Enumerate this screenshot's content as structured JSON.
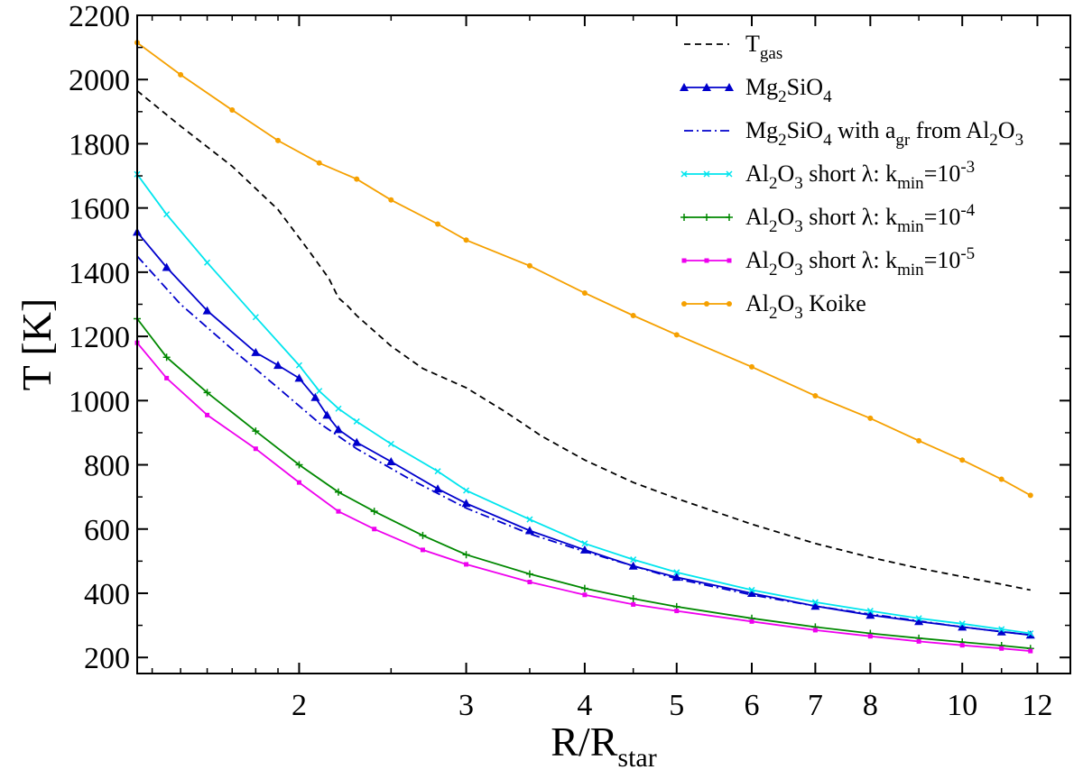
{
  "chart_data": {
    "type": "line",
    "title": "",
    "xlabel": "R/R",
    "xlabel_sub": "star",
    "ylabel": "T [K]",
    "xscale": "log",
    "xlim": [
      1.35,
      13.0
    ],
    "ylim": [
      150,
      2200
    ],
    "x_ticks": [
      2,
      3,
      4,
      5,
      6,
      7,
      8,
      10,
      12
    ],
    "y_ticks": [
      200,
      400,
      600,
      800,
      1000,
      1200,
      1400,
      1600,
      1800,
      2000,
      2200
    ],
    "legend_position": "top-right",
    "series": [
      {
        "id": "tgas",
        "legend": [
          [
            "T",
            ""
          ],
          [
            "gas",
            "sub"
          ]
        ],
        "color": "#000000",
        "dash": "7,5",
        "marker": "none",
        "x": [
          1.35,
          1.5,
          1.7,
          1.9,
          2.05,
          2.15,
          2.2,
          2.25,
          2.3,
          2.5,
          2.7,
          3.0,
          3.3,
          3.6,
          4.0,
          4.5,
          5.0,
          6.0,
          7.0,
          8.0,
          9.0,
          10.0,
          11.0,
          11.8
        ],
        "y": [
          1965,
          1855,
          1730,
          1595,
          1465,
          1380,
          1320,
          1295,
          1265,
          1170,
          1100,
          1040,
          965,
          890,
          815,
          745,
          695,
          615,
          555,
          512,
          478,
          452,
          428,
          410
        ]
      },
      {
        "id": "mg2sio4",
        "legend": [
          [
            "Mg",
            ""
          ],
          [
            "2",
            "sub"
          ],
          [
            "SiO",
            ""
          ],
          [
            "4",
            "sub"
          ]
        ],
        "color": "#0000cc",
        "dash": "",
        "marker": "triangle",
        "x": [
          1.35,
          1.45,
          1.6,
          1.8,
          1.9,
          2.0,
          2.08,
          2.14,
          2.2,
          2.3,
          2.5,
          2.8,
          3.0,
          3.5,
          4.0,
          4.5,
          5.0,
          6.0,
          7.0,
          8.0,
          9.0,
          10.0,
          11.0,
          11.8
        ],
        "y": [
          1525,
          1415,
          1280,
          1150,
          1110,
          1070,
          1010,
          955,
          910,
          870,
          810,
          725,
          680,
          595,
          535,
          485,
          450,
          400,
          360,
          332,
          312,
          295,
          280,
          270
        ]
      },
      {
        "id": "mg2sio4-agr",
        "legend": [
          [
            "Mg",
            ""
          ],
          [
            "2",
            "sub"
          ],
          [
            "SiO",
            ""
          ],
          [
            "4",
            "sub"
          ],
          [
            " with a",
            ""
          ],
          [
            "gr",
            "sub"
          ],
          [
            " from Al",
            ""
          ],
          [
            "2",
            "sub"
          ],
          [
            "O",
            ""
          ],
          [
            "3",
            "sub"
          ]
        ],
        "color": "#0000cc",
        "dash": "10,4,2,4",
        "marker": "none",
        "x": [
          1.35,
          1.5,
          1.7,
          1.9,
          2.1,
          2.3,
          2.6,
          3.0,
          3.5,
          4.0,
          5.0,
          6.0,
          7.0,
          8.0,
          10.0,
          11.8
        ],
        "y": [
          1450,
          1300,
          1160,
          1040,
          930,
          850,
          760,
          665,
          585,
          530,
          445,
          395,
          360,
          335,
          295,
          270
        ]
      },
      {
        "id": "al2o3-kmin-3",
        "legend": [
          [
            "Al",
            ""
          ],
          [
            "2",
            "sub"
          ],
          [
            "O",
            ""
          ],
          [
            "3",
            "sub"
          ],
          [
            " short λ: k",
            ""
          ],
          [
            "min",
            "sub"
          ],
          [
            "=10",
            ""
          ],
          [
            "-3",
            "sup"
          ]
        ],
        "color": "#00e5ee",
        "dash": "",
        "marker": "x",
        "x": [
          1.35,
          1.45,
          1.6,
          1.8,
          2.0,
          2.1,
          2.2,
          2.3,
          2.5,
          2.8,
          3.0,
          3.5,
          4.0,
          4.5,
          5.0,
          6.0,
          7.0,
          8.0,
          9.0,
          10.0,
          11.0,
          11.8
        ],
        "y": [
          1705,
          1580,
          1430,
          1260,
          1110,
          1030,
          975,
          935,
          865,
          780,
          720,
          630,
          555,
          505,
          465,
          410,
          372,
          345,
          322,
          305,
          288,
          275
        ]
      },
      {
        "id": "al2o3-kmin-4",
        "legend": [
          [
            "Al",
            ""
          ],
          [
            "2",
            "sub"
          ],
          [
            "O",
            ""
          ],
          [
            "3",
            "sub"
          ],
          [
            " short λ: k",
            ""
          ],
          [
            "min",
            "sub"
          ],
          [
            "=10",
            ""
          ],
          [
            "-4",
            "sup"
          ]
        ],
        "color": "#008800",
        "dash": "",
        "marker": "plus",
        "x": [
          1.35,
          1.45,
          1.6,
          1.8,
          2.0,
          2.2,
          2.4,
          2.7,
          3.0,
          3.5,
          4.0,
          4.5,
          5.0,
          6.0,
          7.0,
          8.0,
          9.0,
          10.0,
          11.0,
          11.8
        ],
        "y": [
          1255,
          1135,
          1025,
          905,
          800,
          715,
          655,
          580,
          520,
          460,
          415,
          383,
          358,
          322,
          295,
          275,
          260,
          248,
          237,
          228
        ]
      },
      {
        "id": "al2o3-kmin-5",
        "legend": [
          [
            "Al",
            ""
          ],
          [
            "2",
            "sub"
          ],
          [
            "O",
            ""
          ],
          [
            "3",
            "sub"
          ],
          [
            " short λ: k",
            ""
          ],
          [
            "min",
            "sub"
          ],
          [
            "=10",
            ""
          ],
          [
            "-5",
            "sup"
          ]
        ],
        "color": "#ee00ee",
        "dash": "",
        "marker": "square",
        "x": [
          1.35,
          1.45,
          1.6,
          1.8,
          2.0,
          2.2,
          2.4,
          2.7,
          3.0,
          3.5,
          4.0,
          4.5,
          5.0,
          6.0,
          7.0,
          8.0,
          9.0,
          10.0,
          11.0,
          11.8
        ],
        "y": [
          1180,
          1070,
          955,
          850,
          745,
          655,
          600,
          535,
          490,
          435,
          395,
          365,
          345,
          312,
          285,
          266,
          250,
          238,
          228,
          220
        ]
      },
      {
        "id": "al2o3-koike",
        "legend": [
          [
            "Al",
            ""
          ],
          [
            "2",
            "sub"
          ],
          [
            "O",
            ""
          ],
          [
            "3",
            "sub"
          ],
          [
            " Koike",
            ""
          ]
        ],
        "color": "#f5a000",
        "dash": "",
        "marker": "circle",
        "x": [
          1.35,
          1.5,
          1.7,
          1.9,
          2.1,
          2.3,
          2.5,
          2.8,
          3.0,
          3.5,
          4.0,
          4.5,
          5.0,
          6.0,
          7.0,
          8.0,
          9.0,
          10.0,
          11.0,
          11.8
        ],
        "y": [
          2115,
          2015,
          1905,
          1810,
          1740,
          1690,
          1625,
          1550,
          1500,
          1420,
          1335,
          1265,
          1205,
          1105,
          1015,
          945,
          875,
          815,
          755,
          705
        ]
      }
    ]
  }
}
